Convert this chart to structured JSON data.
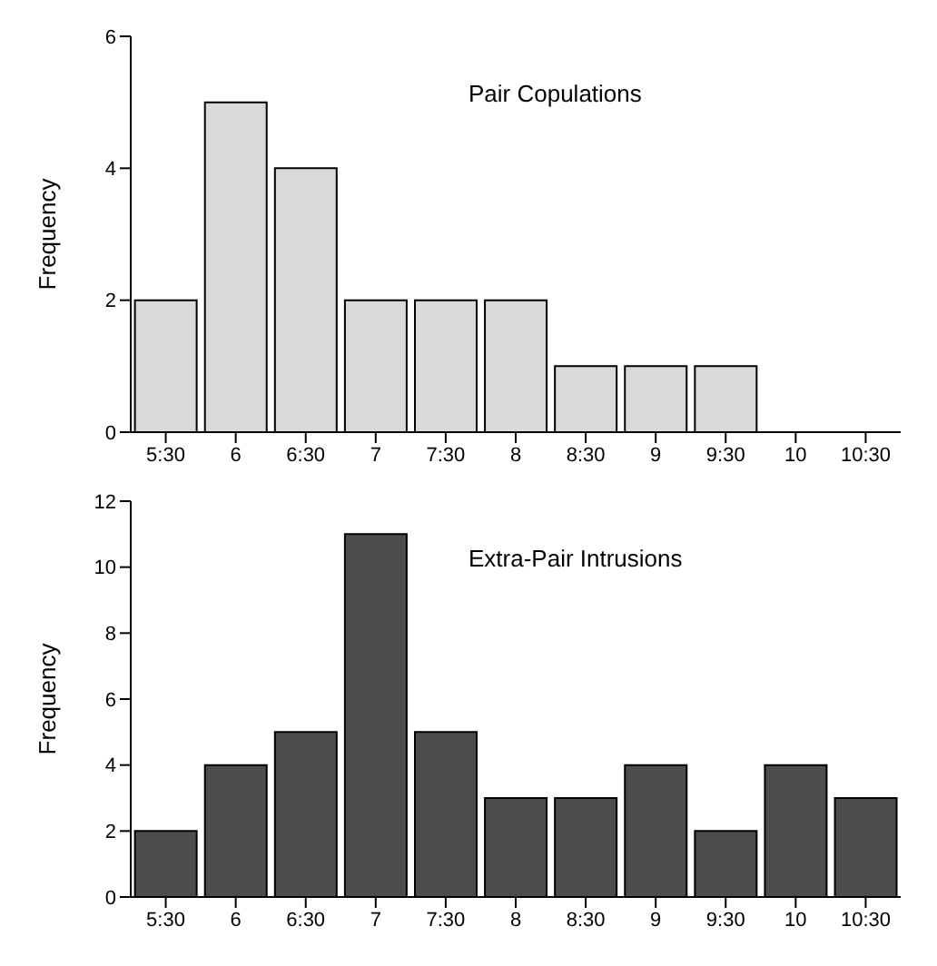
{
  "chart_data": [
    {
      "type": "bar",
      "title": "Pair Copulations",
      "ylabel": "Frequency",
      "categories": [
        "5:30",
        "6",
        "6:30",
        "7",
        "7:30",
        "8",
        "8:30",
        "9",
        "9:30",
        "10",
        "10:30"
      ],
      "values": [
        2,
        5,
        4,
        2,
        2,
        2,
        1,
        1,
        1,
        0,
        0
      ],
      "color": "#d9d9d9",
      "ylim": [
        0,
        6
      ],
      "yticks": [
        0,
        2,
        4,
        6
      ],
      "grid": false
    },
    {
      "type": "bar",
      "title": "Extra-Pair Intrusions",
      "ylabel": "Frequency",
      "categories": [
        "5:30",
        "6",
        "6:30",
        "7",
        "7:30",
        "8",
        "8:30",
        "9",
        "9:30",
        "10",
        "10:30"
      ],
      "values": [
        2,
        4,
        5,
        11,
        5,
        3,
        3,
        4,
        2,
        4,
        3
      ],
      "color": "#4d4d4d",
      "ylim": [
        0,
        12
      ],
      "yticks": [
        0,
        2,
        4,
        6,
        8,
        10,
        12
      ],
      "grid": false
    }
  ]
}
